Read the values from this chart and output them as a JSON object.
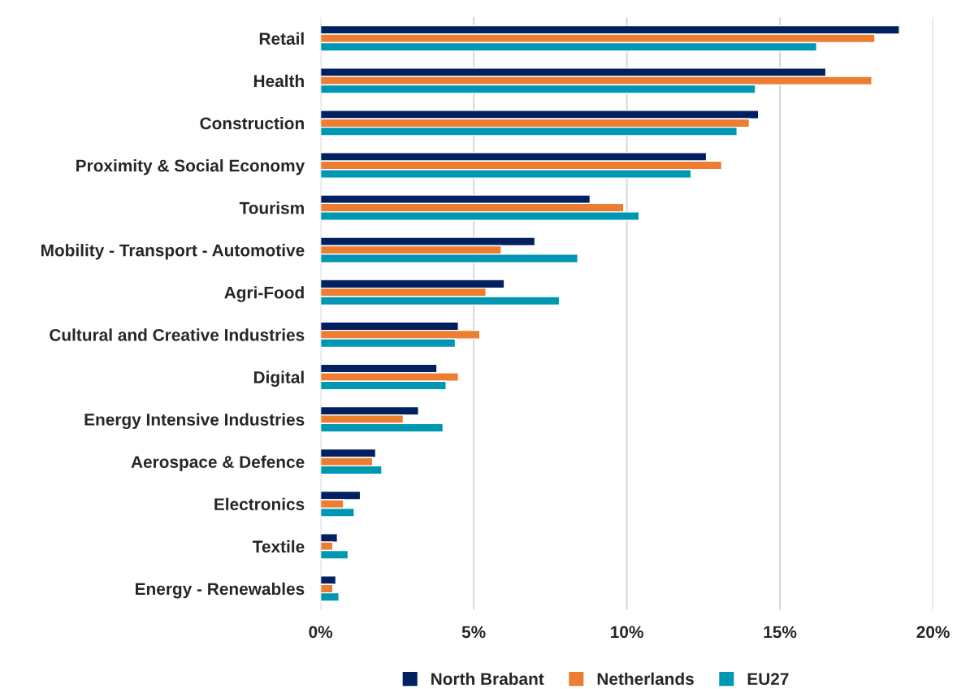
{
  "chart_data": {
    "type": "bar",
    "orientation": "horizontal",
    "categories": [
      "Retail",
      "Health",
      "Construction",
      "Proximity & Social Economy",
      "Tourism",
      "Mobility - Transport - Automotive",
      "Agri-Food",
      "Cultural and Creative Industries",
      "Digital",
      "Energy Intensive Industries",
      "Aerospace & Defence",
      "Electronics",
      "Textile",
      "Energy - Renewables"
    ],
    "series": [
      {
        "name": "North Brabant",
        "color": "#002060",
        "values": [
          18.9,
          16.5,
          14.3,
          12.6,
          8.8,
          7.0,
          6.0,
          4.5,
          3.8,
          3.2,
          1.8,
          1.3,
          0.55,
          0.5
        ]
      },
      {
        "name": "Netherlands",
        "color": "#ed7d31",
        "values": [
          18.1,
          18.0,
          14.0,
          13.1,
          9.9,
          5.9,
          5.4,
          5.2,
          4.5,
          2.7,
          1.7,
          0.75,
          0.4,
          0.4
        ]
      },
      {
        "name": "EU27",
        "color": "#0097b2",
        "values": [
          16.2,
          14.2,
          13.6,
          12.1,
          10.4,
          8.4,
          7.8,
          4.4,
          4.1,
          4.0,
          2.0,
          1.1,
          0.9,
          0.6
        ]
      }
    ],
    "xlim": [
      0,
      20
    ],
    "xticks": [
      {
        "value": 0,
        "label": "0%"
      },
      {
        "value": 5,
        "label": "5%"
      },
      {
        "value": 10,
        "label": "10%"
      },
      {
        "value": 15,
        "label": "15%"
      },
      {
        "value": 20,
        "label": "20%"
      }
    ],
    "grid": "x",
    "legend": "bottom"
  }
}
